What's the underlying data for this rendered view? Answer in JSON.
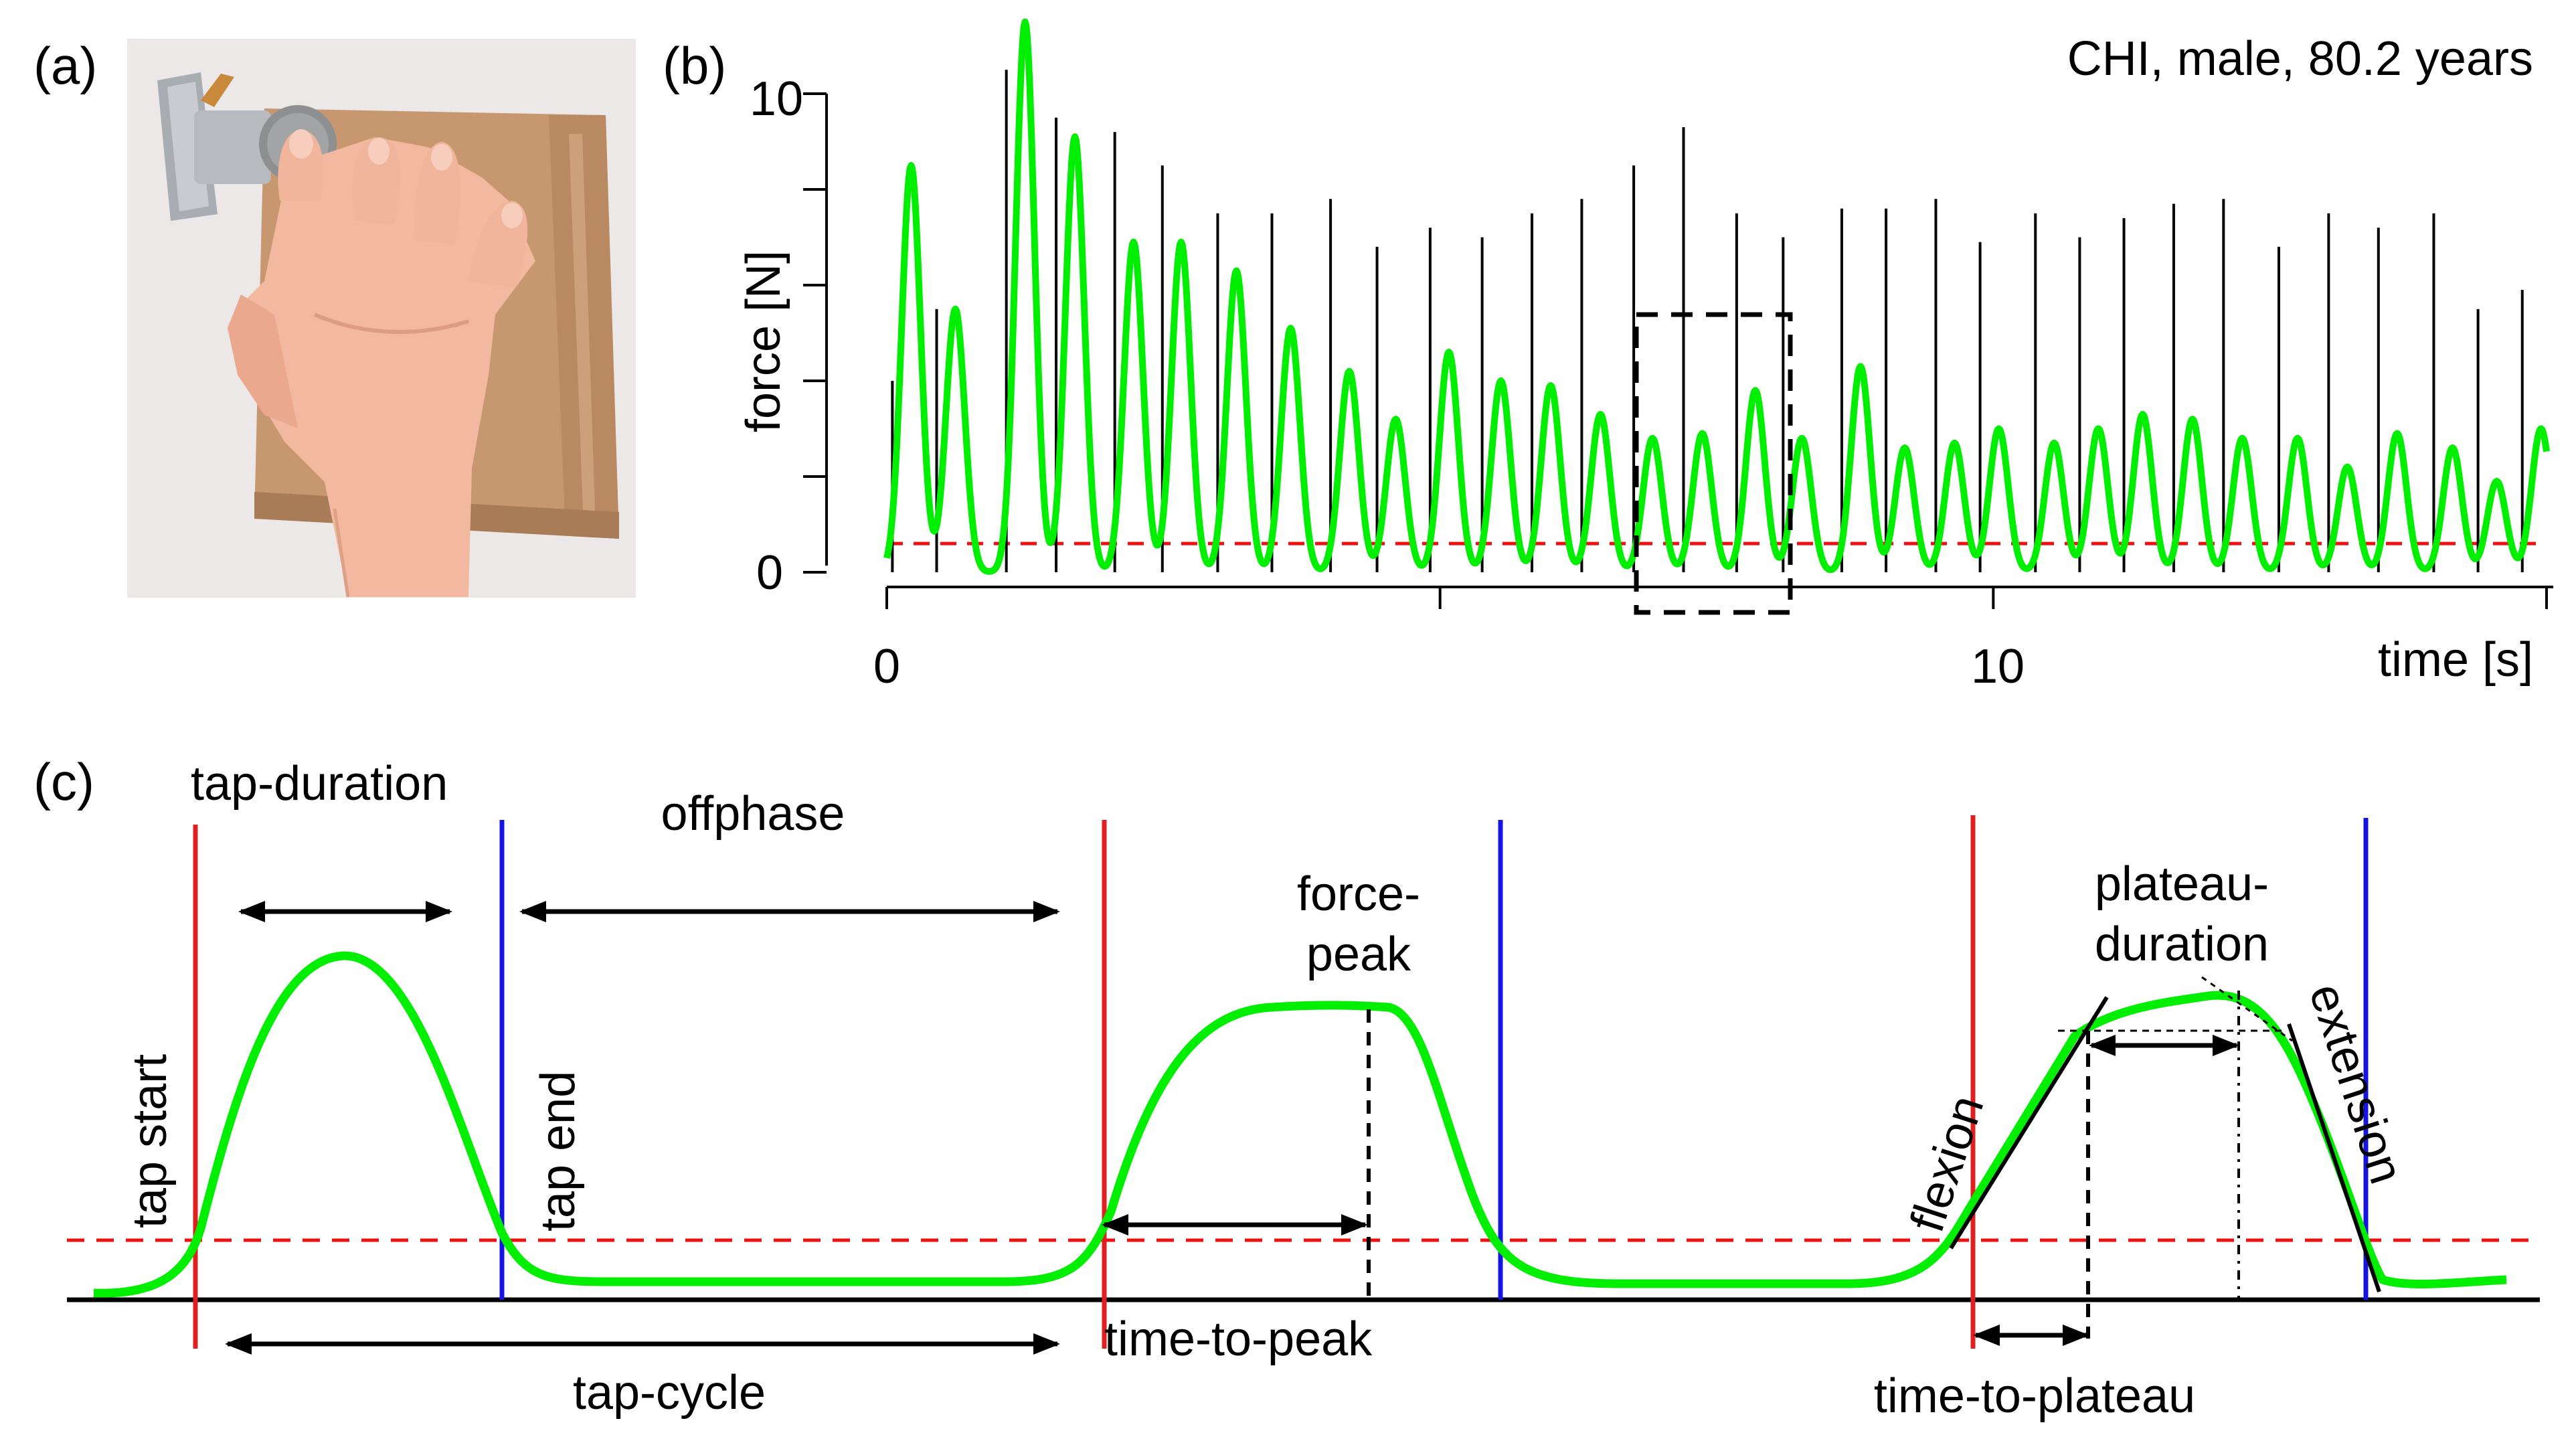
{
  "panels": {
    "a": {
      "label": "(a)"
    },
    "b": {
      "label": "(b)",
      "subject": "CHI, male, 80.2 years"
    },
    "c": {
      "label": "(c)"
    }
  },
  "chart_data": {
    "type": "line",
    "title": "CHI, male, 80.2 years",
    "xlabel": "time [s]",
    "ylabel": "force [N]",
    "xlim": [
      0,
      15
    ],
    "ylim": [
      0,
      10
    ],
    "x_ticks": [
      0,
      5,
      10,
      15
    ],
    "x_tick_labels": [
      "0",
      "10"
    ],
    "y_ticks": [
      0,
      2,
      4,
      6,
      8,
      10
    ],
    "y_tick_labels": [
      "0",
      "10"
    ],
    "threshold": 0.6,
    "tap_times": [
      0.22,
      0.62,
      1.25,
      1.7,
      2.23,
      2.66,
      3.16,
      3.65,
      4.18,
      4.6,
      5.08,
      5.55,
      6.0,
      6.45,
      6.92,
      7.37,
      7.85,
      8.27,
      8.8,
      9.2,
      9.65,
      10.05,
      10.55,
      10.95,
      11.35,
      11.8,
      12.25,
      12.75,
      13.2,
      13.65,
      14.15,
      14.55,
      14.95
    ],
    "series": [
      {
        "name": "force",
        "color": "#00ee00",
        "values": [
          8.5,
          5.5,
          11.5,
          9.1,
          6.9,
          6.9,
          6.3,
          5.1,
          4.2,
          3.2,
          4.6,
          4.0,
          3.9,
          3.3,
          2.8,
          2.9,
          3.8,
          2.8,
          4.3,
          2.6,
          2.7,
          3.0,
          2.7,
          3.0,
          3.3,
          3.2,
          2.8,
          2.8,
          2.2,
          2.9,
          2.6,
          1.9,
          3.0
        ]
      },
      {
        "name": "raw force",
        "color": "#000000",
        "values": [
          4.0,
          5.5,
          10.5,
          9.5,
          9.2,
          8.5,
          7.5,
          7.5,
          7.8,
          6.8,
          7.2,
          7.0,
          7.5,
          7.8,
          8.5,
          9.3,
          7.5,
          7.0,
          7.6,
          7.6,
          7.8,
          6.9,
          7.5,
          7.0,
          7.4,
          7.7,
          7.8,
          6.8,
          7.5,
          7.2,
          7.5,
          5.5,
          5.9
        ]
      }
    ]
  },
  "diagram": {
    "labels": {
      "tap_duration": "tap-duration",
      "offphase": "offphase",
      "tap_start": "tap start",
      "tap_end": "tap end",
      "tap_cycle": "tap-cycle",
      "force_peak_1": "force-",
      "force_peak_2": "peak",
      "time_to_peak": "time-to-peak",
      "plateau_duration_1": "plateau-",
      "plateau_duration_2": "duration",
      "flexion": "flexion",
      "extension": "extension",
      "time_to_plateau": "time-to-plateau"
    },
    "colors": {
      "tap_start_line": "#e02020",
      "tap_end_line": "#1515e0",
      "threshold_line": "#ee1111",
      "signal": "#00ee00"
    }
  }
}
